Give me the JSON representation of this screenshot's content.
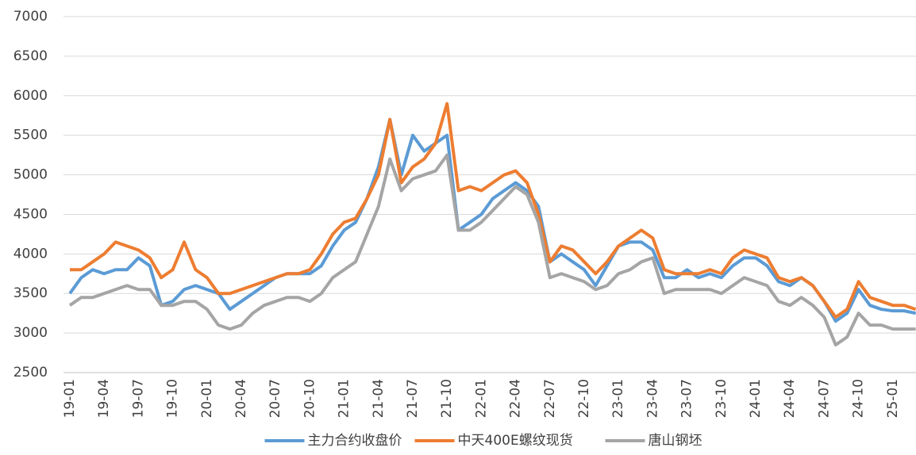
{
  "chart_data": {
    "type": "line",
    "categories": [
      "19-01",
      null,
      null,
      "19-04",
      null,
      null,
      "19-07",
      null,
      null,
      "19-10",
      null,
      null,
      "20-01",
      null,
      null,
      "20-04",
      null,
      null,
      "20-07",
      null,
      null,
      "20-10",
      null,
      null,
      "21-01",
      null,
      null,
      "21-04",
      null,
      null,
      "21-07",
      null,
      null,
      "21-10",
      null,
      null,
      "22-01",
      null,
      null,
      "22-04",
      null,
      null,
      "22-07",
      null,
      null,
      "22-10",
      null,
      null,
      "23-01",
      null,
      null,
      "23-04",
      null,
      null,
      "23-07",
      null,
      null,
      "23-10",
      null,
      null,
      "24-01",
      null,
      null,
      "24-04",
      null,
      null,
      "24-07",
      null,
      null,
      "24-10",
      null,
      null,
      "25-01",
      null,
      null
    ],
    "series": [
      {
        "name": "主力合约收盘价",
        "color": "#5b9bd5",
        "values": [
          3500,
          3700,
          3800,
          3750,
          3800,
          3800,
          3950,
          3850,
          3350,
          3400,
          3550,
          3600,
          3550,
          3500,
          3300,
          3400,
          3500,
          3600,
          3700,
          3750,
          3750,
          3750,
          3850,
          4100,
          4300,
          4400,
          4700,
          5100,
          5700,
          5000,
          5500,
          5300,
          5400,
          5500,
          4300,
          4400,
          4500,
          4700,
          4800,
          4900,
          4800,
          4600,
          3900,
          4000,
          3900,
          3800,
          3600,
          3850,
          4100,
          4150,
          4150,
          4050,
          3700,
          3700,
          3800,
          3700,
          3750,
          3700,
          3850,
          3950,
          3950,
          3850,
          3650,
          3600,
          3700,
          3600,
          3400,
          3150,
          3250,
          3550,
          3350,
          3300,
          3280,
          3280,
          3250
        ]
      },
      {
        "name": "中天400E螺纹现货",
        "color": "#ed7d31",
        "values": [
          3800,
          3800,
          3900,
          4000,
          4150,
          4100,
          4050,
          3950,
          3700,
          3800,
          4150,
          3800,
          3700,
          3500,
          3500,
          3550,
          3600,
          3650,
          3700,
          3750,
          3750,
          3800,
          4000,
          4250,
          4400,
          4450,
          4700,
          5000,
          5700,
          4900,
          5100,
          5200,
          5400,
          5900,
          4800,
          4850,
          4800,
          4900,
          5000,
          5050,
          4900,
          4500,
          3900,
          4100,
          4050,
          3900,
          3750,
          3900,
          4100,
          4200,
          4300,
          4200,
          3800,
          3750,
          3750,
          3750,
          3800,
          3750,
          3950,
          4050,
          4000,
          3950,
          3700,
          3650,
          3700,
          3600,
          3400,
          3200,
          3300,
          3650,
          3450,
          3400,
          3350,
          3350,
          3300
        ]
      },
      {
        "name": "唐山钢坯",
        "color": "#a5a5a5",
        "values": [
          3350,
          3450,
          3450,
          3500,
          3550,
          3600,
          3550,
          3550,
          3350,
          3350,
          3400,
          3400,
          3300,
          3100,
          3050,
          3100,
          3250,
          3350,
          3400,
          3450,
          3450,
          3400,
          3500,
          3700,
          3800,
          3900,
          4250,
          4600,
          5200,
          4800,
          4950,
          5000,
          5050,
          5250,
          4300,
          4300,
          4400,
          4550,
          4700,
          4850,
          4750,
          4400,
          3700,
          3750,
          3700,
          3650,
          3550,
          3600,
          3750,
          3800,
          3900,
          3950,
          3500,
          3550,
          3550,
          3550,
          3550,
          3500,
          3600,
          3700,
          3650,
          3600,
          3400,
          3350,
          3450,
          3350,
          3200,
          2850,
          2950,
          3250,
          3100,
          3100,
          3050,
          3050,
          3050
        ]
      }
    ],
    "ylim": [
      2500,
      7000
    ],
    "yticks": [
      2500,
      3000,
      3500,
      4000,
      4500,
      5000,
      5500,
      6000,
      6500,
      7000
    ],
    "grid": true,
    "legend": "bottom"
  }
}
